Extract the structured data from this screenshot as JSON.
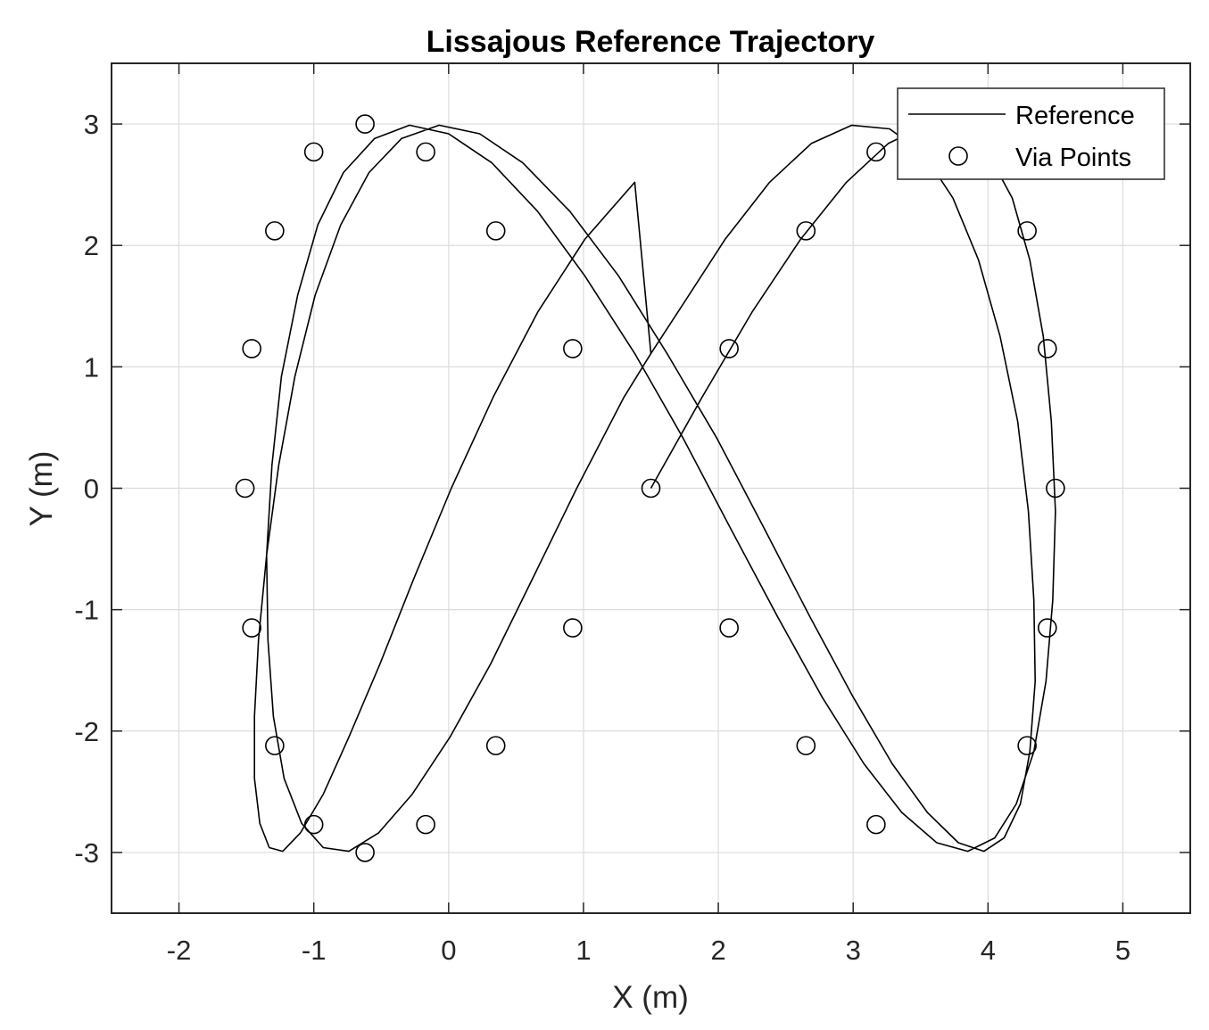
{
  "chart_data": {
    "type": "line",
    "title": "Lissajous Reference Trajectory",
    "xlabel": "X (m)",
    "ylabel": "Y (m)",
    "xlim": [
      -2.5,
      5.5
    ],
    "ylim": [
      -3.5,
      3.5
    ],
    "xticks": [
      -2,
      -1,
      0,
      1,
      2,
      3,
      4,
      5
    ],
    "yticks": [
      -3,
      -2,
      -1,
      0,
      1,
      2,
      3
    ],
    "xtick_labels": [
      "-2",
      "-1",
      "0",
      "1",
      "2",
      "3",
      "4",
      "5"
    ],
    "ytick_labels": [
      "-3",
      "-2",
      "-1",
      "0",
      "1",
      "2",
      "3"
    ],
    "grid": true,
    "legend_position": "top-right",
    "colors": {
      "line": "#000000",
      "grid": "#dcdcdc",
      "axes": "#262626"
    },
    "series": [
      {
        "name": "Reference",
        "style": "line",
        "x": [
          1.5,
          1.88,
          2.25,
          2.61,
          2.95,
          3.26,
          3.54,
          3.79,
          4.0,
          4.18,
          4.31,
          4.41,
          4.47,
          4.5,
          4.48,
          4.43,
          4.34,
          4.21,
          4.05,
          3.85,
          3.62,
          3.36,
          3.08,
          2.77,
          2.44,
          2.09,
          1.74,
          1.38,
          1.01,
          0.66,
          0.32,
          0.0,
          -0.29,
          -0.55,
          -0.78,
          -0.97,
          -1.12,
          -1.24,
          -1.31,
          -1.35,
          -1.34,
          -1.3,
          -1.22,
          -1.09,
          -0.93,
          -0.74,
          -0.52,
          -0.27,
          0.01,
          0.31,
          0.62,
          0.95,
          1.3,
          1.5,
          1.7,
          2.05,
          2.38,
          2.69,
          2.99,
          3.27,
          3.52,
          3.74,
          3.93,
          4.09,
          4.22,
          4.3,
          4.34,
          4.35,
          4.31,
          4.24,
          4.12,
          3.97,
          3.78,
          3.55,
          3.29,
          3.0,
          2.68,
          2.34,
          1.99,
          1.62,
          1.26,
          0.9,
          0.55,
          0.23,
          -0.07,
          -0.35,
          -0.59,
          -0.8,
          -0.99,
          -1.14,
          -1.26,
          -1.35,
          -1.41,
          -1.44,
          -1.44,
          -1.4,
          -1.33,
          -1.23,
          -1.1,
          -0.93,
          -0.74,
          -0.51,
          -0.26,
          0.02,
          0.33,
          0.66,
          1.01,
          1.38,
          1.5
        ],
        "y": [
          0.0,
          0.75,
          1.45,
          2.05,
          2.52,
          2.84,
          2.99,
          2.96,
          2.76,
          2.39,
          1.88,
          1.25,
          0.55,
          -0.19,
          -0.92,
          -1.59,
          -2.17,
          -2.6,
          -2.88,
          -2.99,
          -2.92,
          -2.67,
          -2.27,
          -1.72,
          -1.06,
          -0.33,
          0.41,
          1.11,
          1.75,
          2.28,
          2.68,
          2.92,
          2.99,
          2.88,
          2.6,
          2.17,
          1.59,
          0.92,
          0.19,
          -0.55,
          -1.25,
          -1.88,
          -2.39,
          -2.76,
          -2.96,
          -2.99,
          -2.84,
          -2.52,
          -2.05,
          -1.45,
          -0.75,
          0.0,
          0.75,
          1.11,
          1.45,
          2.05,
          2.52,
          2.84,
          2.99,
          2.96,
          2.76,
          2.39,
          1.88,
          1.25,
          0.55,
          -0.19,
          -0.92,
          -1.59,
          -2.17,
          -2.6,
          -2.88,
          -2.99,
          -2.92,
          -2.67,
          -2.27,
          -1.72,
          -1.06,
          -0.33,
          0.41,
          1.11,
          1.75,
          2.28,
          2.68,
          2.92,
          2.99,
          2.88,
          2.6,
          2.17,
          1.59,
          0.92,
          0.19,
          -0.55,
          -1.25,
          -1.88,
          -2.39,
          -2.76,
          -2.96,
          -2.99,
          -2.84,
          -2.52,
          -2.05,
          -1.45,
          -0.75,
          0.0,
          0.75,
          1.45,
          2.05,
          2.52,
          1.11
        ]
      },
      {
        "name": "Via Points",
        "style": "markers",
        "marker": "circle-open",
        "x": [
          -0.62,
          -1.0,
          -1.29,
          -1.46,
          -1.51,
          -1.46,
          -1.29,
          -1.0,
          -0.62,
          -0.17,
          0.35,
          0.92,
          1.5,
          2.08,
          2.65,
          3.17,
          3.62,
          4.0,
          4.29,
          4.44,
          4.5,
          4.44,
          4.29,
          3.17,
          2.65,
          2.08,
          0.92,
          0.35,
          -0.17
        ],
        "y": [
          3.0,
          2.77,
          2.12,
          1.15,
          0.0,
          -1.15,
          -2.12,
          -2.77,
          -3.0,
          -2.77,
          -2.12,
          -1.15,
          0.0,
          1.15,
          2.12,
          2.77,
          3.0,
          2.77,
          2.12,
          1.15,
          0.0,
          -1.15,
          -2.12,
          -2.77,
          -2.12,
          -1.15,
          1.15,
          2.12,
          2.77
        ]
      }
    ]
  }
}
